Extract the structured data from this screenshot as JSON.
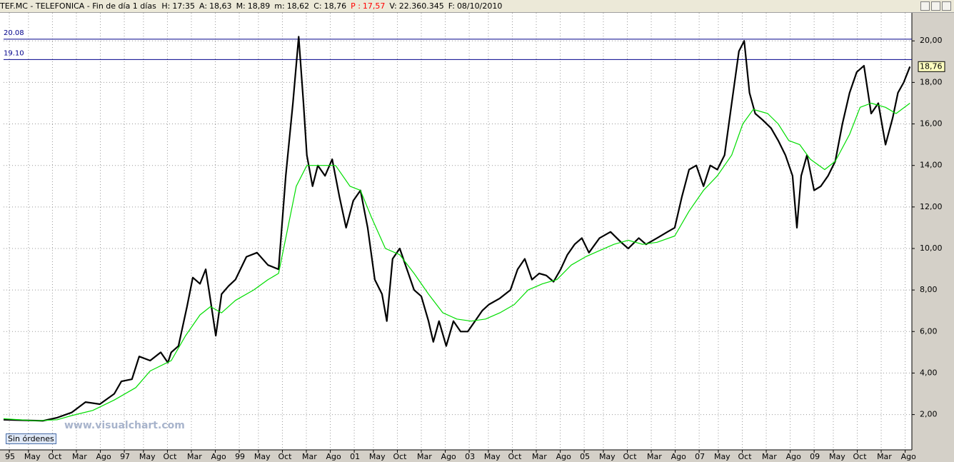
{
  "chart_data": {
    "type": "line",
    "title": "TEF.MC - TELEFONICA - Fin de día 1 días",
    "info": [
      {
        "label": "H:",
        "text": "17:35",
        "color": "#000000"
      },
      {
        "label": "A:",
        "text": "18,63",
        "color": "#000000"
      },
      {
        "label": "M:",
        "text": "18,89",
        "color": "#000000"
      },
      {
        "label": "m:",
        "text": "18,62",
        "color": "#000000"
      },
      {
        "label": "C:",
        "text": "18,76",
        "color": "#000000"
      },
      {
        "label": "P :",
        "text": "17,57",
        "color": "#ff0000"
      },
      {
        "label": "V:",
        "text": "22.360.345",
        "color": "#000000"
      },
      {
        "label": "F:",
        "text": "08/10/2010",
        "color": "#000000"
      }
    ],
    "button": "Sin órdenes",
    "watermark": "www.visualchart.com",
    "xlim": [
      -1.2,
      188.4
    ],
    "xticks": [
      {
        "value": 0,
        "label": "95"
      },
      {
        "value": 4,
        "label": "May"
      },
      {
        "value": 9,
        "label": "Oct"
      },
      {
        "value": 14,
        "label": "Mar"
      },
      {
        "value": 19,
        "label": "Ago"
      },
      {
        "value": 24,
        "label": "97"
      },
      {
        "value": 28,
        "label": "May"
      },
      {
        "value": 33,
        "label": "Oct"
      },
      {
        "value": 38,
        "label": "Mar"
      },
      {
        "value": 43,
        "label": "Ago"
      },
      {
        "value": 48,
        "label": "99"
      },
      {
        "value": 52,
        "label": "May"
      },
      {
        "value": 57,
        "label": "Oct"
      },
      {
        "value": 62,
        "label": "Mar"
      },
      {
        "value": 67,
        "label": "Ago"
      },
      {
        "value": 72,
        "label": "01"
      },
      {
        "value": 76,
        "label": "May"
      },
      {
        "value": 81,
        "label": "Oct"
      },
      {
        "value": 86,
        "label": "Mar"
      },
      {
        "value": 91,
        "label": "Ago"
      },
      {
        "value": 96,
        "label": "03"
      },
      {
        "value": 100,
        "label": "May"
      },
      {
        "value": 105,
        "label": "Oct"
      },
      {
        "value": 110,
        "label": "Mar"
      },
      {
        "value": 115,
        "label": "Ago"
      },
      {
        "value": 120,
        "label": "05"
      },
      {
        "value": 124,
        "label": "May"
      },
      {
        "value": 129,
        "label": "Oct"
      },
      {
        "value": 134,
        "label": "Mar"
      },
      {
        "value": 139,
        "label": "Ago"
      },
      {
        "value": 144,
        "label": "07"
      },
      {
        "value": 148,
        "label": "May"
      },
      {
        "value": 153,
        "label": "Oct"
      },
      {
        "value": 158,
        "label": "Mar"
      },
      {
        "value": 163,
        "label": "Ago"
      },
      {
        "value": 168,
        "label": "09"
      },
      {
        "value": 172,
        "label": "May"
      },
      {
        "value": 177,
        "label": "Oct"
      },
      {
        "value": 182,
        "label": "Mar"
      },
      {
        "value": 187,
        "label": "Ago"
      }
    ],
    "ylim": [
      0.3,
      21.35
    ],
    "yticks": [
      {
        "value": 2,
        "label": "2,00"
      },
      {
        "value": 4,
        "label": "4,00"
      },
      {
        "value": 6,
        "label": "6,00"
      },
      {
        "value": 8,
        "label": "8,00"
      },
      {
        "value": 10,
        "label": "10,00"
      },
      {
        "value": 12,
        "label": "12,00"
      },
      {
        "value": 14,
        "label": "14,00"
      },
      {
        "value": 16,
        "label": "16,00"
      },
      {
        "value": 18,
        "label": "18,00"
      },
      {
        "value": 20,
        "label": "20,00"
      }
    ],
    "grid": true,
    "hlines": [
      {
        "value": 20.08,
        "label": "20.08",
        "color": "#00008b"
      },
      {
        "value": 19.1,
        "label": "19.10",
        "color": "#00008b"
      }
    ],
    "last_value": {
      "value": 18.76,
      "label": "18,76"
    },
    "series": [
      {
        "color": "#000000",
        "x": [
          -1.2,
          7.0,
          10.0,
          13.0,
          15.9,
          18.9,
          21.9,
          23.4,
          25.6,
          27.1,
          29.4,
          31.6,
          33.1,
          33.8,
          35.3,
          37.1,
          38.3,
          39.8,
          41.0,
          42.0,
          43.1,
          44.3,
          45.8,
          47.2,
          49.5,
          51.7,
          54.0,
          56.2,
          57.7,
          59.2,
          60.4,
          61.4,
          62.1,
          63.3,
          64.4,
          65.9,
          67.4,
          68.9,
          70.3,
          71.8,
          73.3,
          74.8,
          76.3,
          77.8,
          78.8,
          80.0,
          81.5,
          83.0,
          84.5,
          86.0,
          87.5,
          88.5,
          89.7,
          91.2,
          92.7,
          94.2,
          95.7,
          97.2,
          98.7,
          100.1,
          102.4,
          104.6,
          106.1,
          107.6,
          109.1,
          110.6,
          112.1,
          113.6,
          115.1,
          116.5,
          118.0,
          119.5,
          121.0,
          123.2,
          125.5,
          127.7,
          129.2,
          131.4,
          132.9,
          135.2,
          137.4,
          138.9,
          140.4,
          141.9,
          143.4,
          144.9,
          146.3,
          147.8,
          149.3,
          150.8,
          152.3,
          153.4,
          154.5,
          155.7,
          157.2,
          159.0,
          160.5,
          162.0,
          163.5,
          164.4,
          165.3,
          166.5,
          168.0,
          169.4,
          170.9,
          172.4,
          173.9,
          175.4,
          176.9,
          178.4,
          179.9,
          181.4,
          182.9,
          184.4,
          185.5,
          186.7,
          188.0
        ],
        "values": [
          1.75,
          1.7,
          1.85,
          2.1,
          2.6,
          2.5,
          3.0,
          3.6,
          3.7,
          4.8,
          4.6,
          5.0,
          4.5,
          5.0,
          5.3,
          7.2,
          8.6,
          8.3,
          9.0,
          7.5,
          5.8,
          7.8,
          8.2,
          8.5,
          9.6,
          9.8,
          9.2,
          9.0,
          13.5,
          17.0,
          20.2,
          17.0,
          14.5,
          13.0,
          14.0,
          13.5,
          14.3,
          12.5,
          11.0,
          12.3,
          12.8,
          11.0,
          8.5,
          7.8,
          6.5,
          9.5,
          10.0,
          9.0,
          8.0,
          7.7,
          6.5,
          5.5,
          6.5,
          5.3,
          6.5,
          6.0,
          6.0,
          6.5,
          7.0,
          7.3,
          7.6,
          8.0,
          9.0,
          9.5,
          8.5,
          8.8,
          8.7,
          8.4,
          9.0,
          9.7,
          10.2,
          10.5,
          9.8,
          10.5,
          10.8,
          10.3,
          10.0,
          10.5,
          10.2,
          10.5,
          10.8,
          11.0,
          12.5,
          13.8,
          14.0,
          13.0,
          14.0,
          13.8,
          14.5,
          17.0,
          19.5,
          20.0,
          17.5,
          16.5,
          16.2,
          15.8,
          15.2,
          14.5,
          13.5,
          11.0,
          13.5,
          14.5,
          12.8,
          13.0,
          13.5,
          14.2,
          16.0,
          17.5,
          18.5,
          18.8,
          16.5,
          17.0,
          15.0,
          16.3,
          17.5,
          18.0,
          18.76
        ]
      },
      {
        "color": "#00dd00",
        "x": [
          -1.2,
          5.5,
          10.0,
          13.0,
          17.4,
          21.9,
          26.4,
          29.4,
          33.8,
          36.8,
          39.8,
          42.0,
          44.3,
          47.2,
          51.0,
          54.0,
          56.2,
          57.7,
          59.9,
          62.1,
          65.1,
          68.1,
          71.1,
          73.3,
          75.6,
          78.5,
          81.5,
          84.5,
          87.5,
          90.5,
          93.4,
          96.4,
          99.4,
          102.4,
          105.4,
          108.3,
          111.3,
          114.3,
          117.3,
          120.3,
          123.2,
          126.2,
          129.2,
          132.2,
          135.2,
          138.9,
          141.9,
          144.9,
          147.8,
          150.8,
          153.1,
          155.3,
          158.3,
          160.5,
          162.7,
          165.0,
          167.2,
          170.2,
          172.4,
          175.4,
          177.6,
          179.9,
          182.9,
          185.1,
          188.0
        ],
        "values": [
          1.8,
          1.7,
          1.75,
          1.95,
          2.2,
          2.7,
          3.3,
          4.1,
          4.6,
          5.8,
          6.8,
          7.2,
          6.9,
          7.5,
          8.0,
          8.5,
          8.8,
          10.5,
          13.0,
          14.0,
          14.0,
          14.0,
          13.0,
          12.8,
          11.5,
          10.0,
          9.7,
          8.8,
          7.8,
          6.9,
          6.6,
          6.5,
          6.6,
          6.9,
          7.3,
          8.0,
          8.3,
          8.5,
          9.2,
          9.6,
          9.9,
          10.2,
          10.4,
          10.2,
          10.3,
          10.6,
          11.8,
          12.8,
          13.5,
          14.5,
          16.0,
          16.7,
          16.5,
          16.0,
          15.2,
          15.0,
          14.3,
          13.8,
          14.2,
          15.5,
          16.8,
          17.0,
          16.8,
          16.5,
          17.0
        ]
      }
    ]
  }
}
